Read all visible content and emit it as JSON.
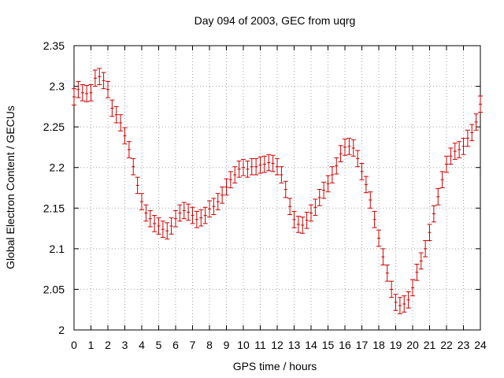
{
  "chart_data": {
    "type": "scatter",
    "title": "Day 094 of 2003, GEC from uqrg",
    "xlabel": "GPS time / hours",
    "ylabel": "Global Electron Content / GECUs",
    "xlim": [
      0,
      24
    ],
    "ylim": [
      2,
      2.35
    ],
    "grid": true,
    "error_bar_halfwidth": 0.01,
    "x_ticks": [
      "0",
      "1",
      "2",
      "3",
      "4",
      "5",
      "6",
      "7",
      "8",
      "9",
      "10",
      "11",
      "12",
      "13",
      "14",
      "15",
      "16",
      "17",
      "18",
      "19",
      "20",
      "21",
      "22",
      "23",
      "24"
    ],
    "y_ticks": [
      "2",
      "2.05",
      "2.1",
      "2.15",
      "2.2",
      "2.25",
      "2.3",
      "2.35"
    ],
    "series_color": "#cc0000",
    "x": [
      0,
      0.25,
      0.5,
      0.75,
      1,
      1.25,
      1.5,
      1.75,
      2,
      2.25,
      2.5,
      2.75,
      3,
      3.25,
      3.5,
      3.75,
      4,
      4.25,
      4.5,
      4.75,
      5,
      5.25,
      5.5,
      5.75,
      6,
      6.25,
      6.5,
      6.75,
      7,
      7.25,
      7.5,
      7.75,
      8,
      8.25,
      8.5,
      8.75,
      9,
      9.25,
      9.5,
      9.75,
      10,
      10.25,
      10.5,
      10.75,
      11,
      11.25,
      11.5,
      11.75,
      12,
      12.25,
      12.5,
      12.75,
      13,
      13.25,
      13.5,
      13.75,
      14,
      14.25,
      14.5,
      14.75,
      15,
      15.25,
      15.5,
      15.75,
      16,
      16.25,
      16.5,
      16.75,
      17,
      17.25,
      17.5,
      17.75,
      18,
      18.25,
      18.5,
      18.75,
      19,
      19.25,
      19.5,
      19.75,
      20,
      20.25,
      20.5,
      20.75,
      21,
      21.25,
      21.5,
      21.75,
      22,
      22.25,
      22.5,
      22.75,
      23,
      23.25,
      23.5,
      23.75,
      24
    ],
    "y": [
      2.287,
      2.296,
      2.292,
      2.291,
      2.292,
      2.31,
      2.312,
      2.307,
      2.296,
      2.273,
      2.265,
      2.255,
      2.239,
      2.222,
      2.201,
      2.178,
      2.158,
      2.144,
      2.137,
      2.131,
      2.128,
      2.124,
      2.122,
      2.128,
      2.137,
      2.144,
      2.147,
      2.145,
      2.141,
      2.136,
      2.138,
      2.141,
      2.149,
      2.152,
      2.158,
      2.166,
      2.176,
      2.185,
      2.191,
      2.198,
      2.2,
      2.198,
      2.201,
      2.201,
      2.203,
      2.204,
      2.206,
      2.205,
      2.201,
      2.191,
      2.173,
      2.152,
      2.136,
      2.13,
      2.129,
      2.135,
      2.144,
      2.151,
      2.163,
      2.172,
      2.18,
      2.191,
      2.202,
      2.217,
      2.225,
      2.226,
      2.224,
      2.211,
      2.195,
      2.179,
      2.16,
      2.136,
      2.113,
      2.09,
      2.07,
      2.05,
      2.034,
      2.03,
      2.032,
      2.037,
      2.052,
      2.071,
      2.085,
      2.1,
      2.12,
      2.143,
      2.164,
      2.185,
      2.204,
      2.214,
      2.22,
      2.222,
      2.226,
      2.236,
      2.243,
      2.256,
      2.278
    ]
  }
}
